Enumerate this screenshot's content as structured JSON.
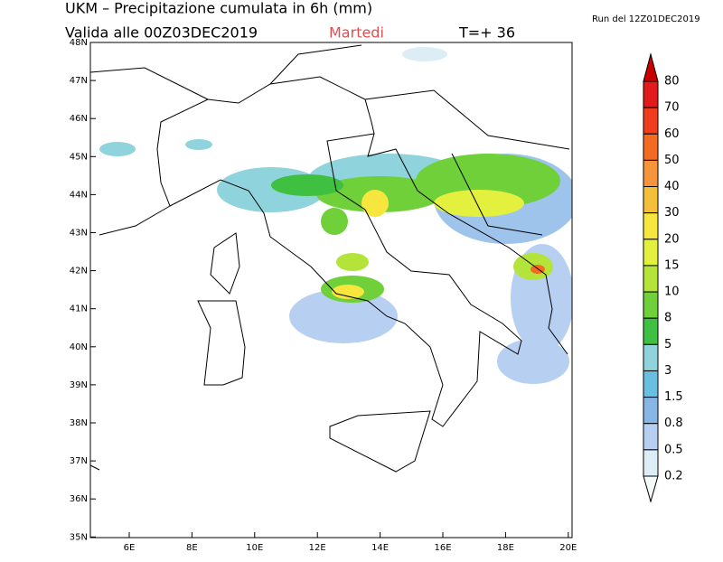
{
  "header": {
    "title": "UKM – Precipitazione cumulata in 6h (mm)",
    "valid": "Valida alle 00Z03DEC2019",
    "weekday": "Martedi",
    "lead": "T=+ 36",
    "run": "Run del 12Z01DEC2019"
  },
  "map": {
    "lon_ticks": [
      {
        "value": 6,
        "label": "6E"
      },
      {
        "value": 8,
        "label": "8E"
      },
      {
        "value": 10,
        "label": "10E"
      },
      {
        "value": 12,
        "label": "12E"
      },
      {
        "value": 14,
        "label": "14E"
      },
      {
        "value": 16,
        "label": "16E"
      },
      {
        "value": 18,
        "label": "18E"
      },
      {
        "value": 20,
        "label": "20E"
      }
    ],
    "lat_ticks": [
      {
        "value": 48,
        "label": "48N"
      },
      {
        "value": 47,
        "label": "47N"
      },
      {
        "value": 46,
        "label": "46N"
      },
      {
        "value": 45,
        "label": "45N"
      },
      {
        "value": 44,
        "label": "44N"
      },
      {
        "value": 43,
        "label": "43N"
      },
      {
        "value": 42,
        "label": "42N"
      },
      {
        "value": 41,
        "label": "41N"
      },
      {
        "value": 40,
        "label": "40N"
      },
      {
        "value": 39,
        "label": "39N"
      },
      {
        "value": 38,
        "label": "38N"
      },
      {
        "value": 37,
        "label": "37N"
      },
      {
        "value": 36,
        "label": "36N"
      },
      {
        "value": 35,
        "label": "35N"
      }
    ]
  },
  "colorbar": {
    "levels": [
      80,
      70,
      60,
      50,
      40,
      30,
      20,
      15,
      10,
      8,
      5,
      3,
      1.5,
      0.8,
      0.5,
      0.2
    ],
    "colors": [
      "#c80000",
      "#e31a1c",
      "#ef3d1e",
      "#f36a21",
      "#f5943a",
      "#f6bf3a",
      "#f6e63d",
      "#e4f03e",
      "#b4e43a",
      "#6fd03a",
      "#3fc040",
      "#8fd3dc",
      "#68bfe0",
      "#87b5e6",
      "#b7cff0",
      "#dcedf5",
      "#f4fbf7"
    ]
  }
}
